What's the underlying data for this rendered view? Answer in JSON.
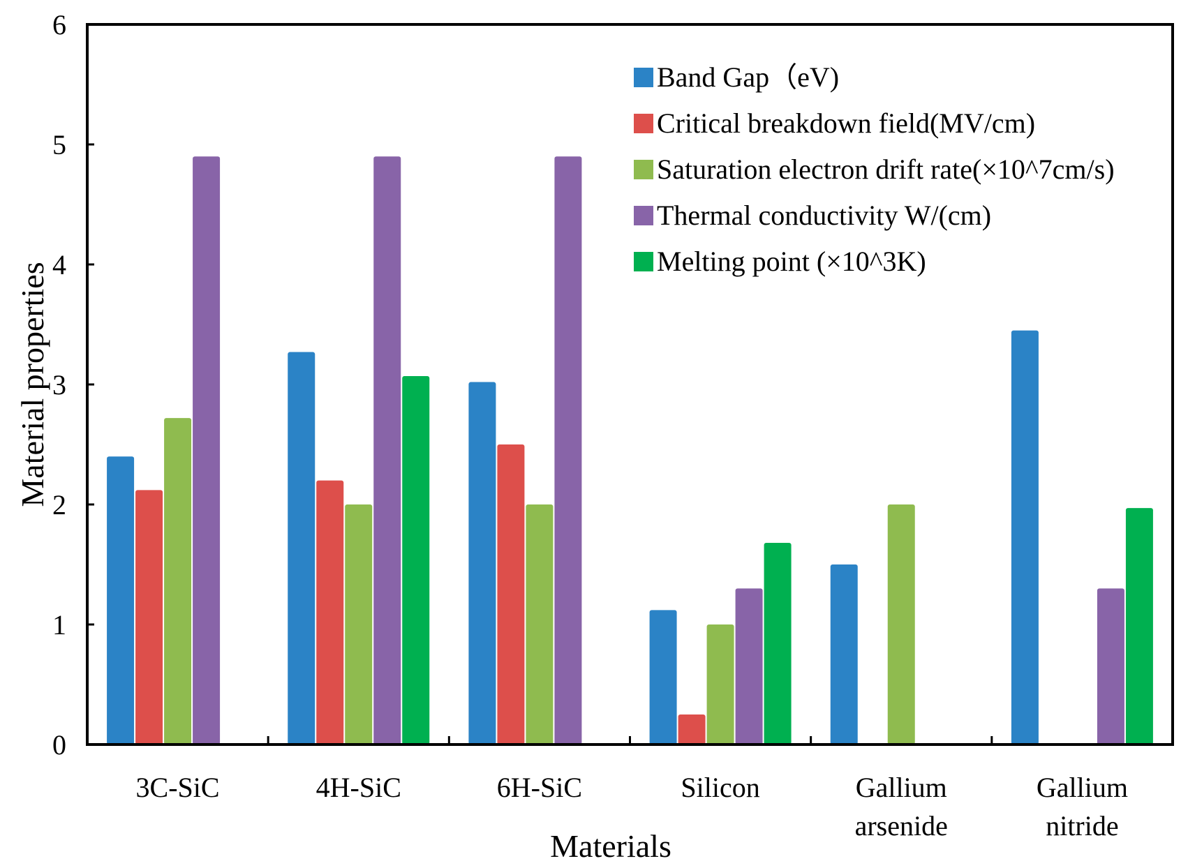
{
  "chart_data": {
    "type": "bar",
    "title": "",
    "xlabel": "Materials",
    "ylabel": "Material properties",
    "ylim": [
      0,
      6
    ],
    "yticks": [
      "0",
      "1",
      "2",
      "3",
      "4",
      "5",
      "6"
    ],
    "categories": [
      [
        "3C-SiC"
      ],
      [
        "4H-SiC"
      ],
      [
        "6H-SiC"
      ],
      [
        "Silicon"
      ],
      [
        "Gallium",
        "arsenide"
      ],
      [
        "Gallium",
        "nitride"
      ]
    ],
    "series": [
      {
        "name": "Band Gap（eV)",
        "color": "#2b83c6",
        "values": [
          2.4,
          3.27,
          3.02,
          1.12,
          1.5,
          3.45
        ]
      },
      {
        "name": "Critical breakdown field(MV/cm)",
        "color": "#dd4f4b",
        "values": [
          2.12,
          2.2,
          2.5,
          0.25,
          null,
          null
        ]
      },
      {
        "name": "Saturation electron drift rate(×10^7cm/s)",
        "color": "#8fbb4f",
        "values": [
          2.72,
          2.0,
          2.0,
          1.0,
          2.0,
          null
        ]
      },
      {
        "name": "Thermal conductivity  W/(cm)",
        "color": "#8864a8",
        "values": [
          4.9,
          4.9,
          4.9,
          1.3,
          null,
          1.3
        ]
      },
      {
        "name": "Melting point (×10^3K)",
        "color": "#00b050",
        "values": [
          null,
          3.07,
          null,
          1.68,
          null,
          1.97
        ]
      }
    ],
    "legend_position": "top-right",
    "grid": false
  }
}
